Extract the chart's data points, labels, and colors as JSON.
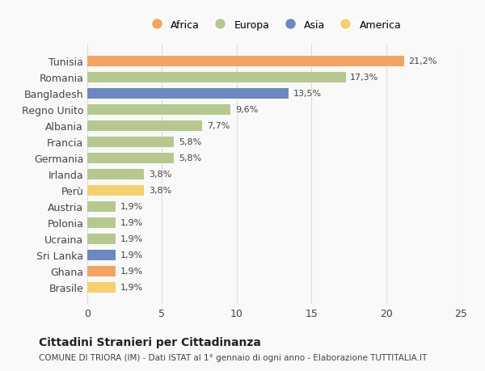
{
  "categories": [
    "Tunisia",
    "Romania",
    "Bangladesh",
    "Regno Unito",
    "Albania",
    "Francia",
    "Germania",
    "Irlanda",
    "Perù",
    "Austria",
    "Polonia",
    "Ucraina",
    "Sri Lanka",
    "Ghana",
    "Brasile"
  ],
  "values": [
    21.2,
    17.3,
    13.5,
    9.6,
    7.7,
    5.8,
    5.8,
    3.8,
    3.8,
    1.9,
    1.9,
    1.9,
    1.9,
    1.9,
    1.9
  ],
  "labels": [
    "21,2%",
    "17,3%",
    "13,5%",
    "9,6%",
    "7,7%",
    "5,8%",
    "5,8%",
    "3,8%",
    "3,8%",
    "1,9%",
    "1,9%",
    "1,9%",
    "1,9%",
    "1,9%",
    "1,9%"
  ],
  "continents": [
    "Africa",
    "Europa",
    "Asia",
    "Europa",
    "Europa",
    "Europa",
    "Europa",
    "Europa",
    "America",
    "Europa",
    "Europa",
    "Europa",
    "Asia",
    "Africa",
    "America"
  ],
  "colors": {
    "Africa": "#F4A460",
    "Europa": "#B5C98E",
    "Asia": "#6B88C4",
    "America": "#F5D06E"
  },
  "legend_order": [
    "Africa",
    "Europa",
    "Asia",
    "America"
  ],
  "xlim": [
    0,
    25
  ],
  "xticks": [
    0,
    5,
    10,
    15,
    20,
    25
  ],
  "title": "Cittadini Stranieri per Cittadinanza",
  "subtitle": "COMUNE DI TRIORA (IM) - Dati ISTAT al 1° gennaio di ogni anno - Elaborazione TUTTITALIA.IT",
  "background_color": "#f9f9f9",
  "grid_color": "#dddddd",
  "bar_height": 0.65
}
